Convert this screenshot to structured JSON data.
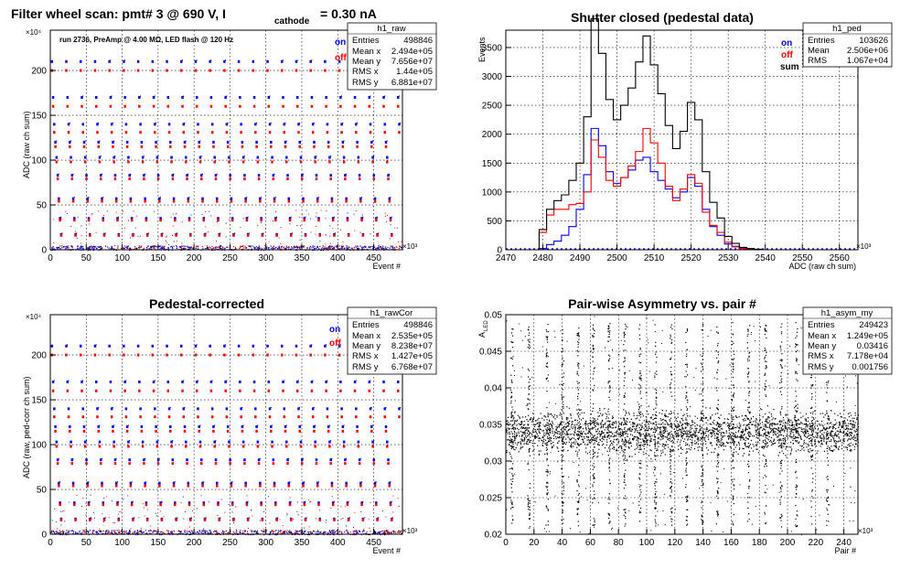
{
  "colors": {
    "on": "#0000ff",
    "off": "#ff0000",
    "sum": "#000000"
  },
  "chart_data": [
    {
      "type": "scatter",
      "title_main": "Filter wheel scan: pmt#   3 @   690 V, I",
      "title_sub": "cathode",
      "title_tail": "= 0.30 nA",
      "annotation": "run 2736, PreAmp @ 4.00 MΩ, LED flash @  120 Hz",
      "xlabel": "Event #",
      "ylabel": "ADC (raw ch sum)",
      "x_exponent": "×10³",
      "y_exponent": "×10⁴",
      "xlim": [
        0,
        490
      ],
      "ylim": [
        0,
        245
      ],
      "xticks": [
        0,
        50,
        100,
        150,
        200,
        250,
        300,
        350,
        400,
        450
      ],
      "yticks": [
        0,
        50,
        100,
        150,
        200
      ],
      "legend": [
        {
          "label": "on",
          "color": "#0000ff"
        },
        {
          "label": "off",
          "color": "#ff0000"
        }
      ],
      "stats": {
        "name": "h1_raw",
        "rows": [
          [
            "Entries",
            "498846"
          ],
          [
            "Mean x",
            "2.494e+05"
          ],
          [
            "Mean y",
            "7.656e+07"
          ],
          [
            "RMS x",
            "1.44e+05"
          ],
          [
            "RMS y",
            "6.881e+07"
          ]
        ]
      },
      "levels": [
        {
          "on": 210,
          "off": 200
        },
        {
          "on": 170,
          "off": 160
        },
        {
          "on": 140,
          "off": 131
        },
        {
          "on": 120,
          "off": 115
        },
        {
          "on": 103,
          "off": 98
        },
        {
          "on": 83,
          "off": 79
        },
        {
          "on": 57,
          "off": 54
        },
        {
          "on": 35,
          "off": 33
        },
        {
          "on": 17,
          "off": 16
        }
      ],
      "period": 20
    },
    {
      "type": "line",
      "title": "Shutter closed (pedestal data)",
      "xlabel": "ADC (raw ch sum)",
      "ylabel": "Events",
      "x_exponent": "×10³",
      "xlim": [
        2470,
        2565
      ],
      "ylim": [
        0,
        3800
      ],
      "xticks": [
        2470,
        2480,
        2490,
        2500,
        2510,
        2520,
        2530,
        2540,
        2550,
        2560
      ],
      "yticks": [
        0,
        500,
        1000,
        1500,
        2000,
        2500,
        3000,
        3500
      ],
      "legend": [
        {
          "label": "on",
          "color": "#0000ff"
        },
        {
          "label": "off",
          "color": "#ff0000"
        },
        {
          "label": "sum",
          "color": "#000000"
        }
      ],
      "stats": {
        "name": "h1_ped",
        "rows": [
          [
            "Entries",
            "103626"
          ],
          [
            "Mean",
            "2.506e+06"
          ],
          [
            "RMS",
            "1.067e+04"
          ]
        ]
      },
      "x": [
        2480,
        2482,
        2484,
        2486,
        2488,
        2490,
        2492,
        2494,
        2496,
        2498,
        2500,
        2502,
        2504,
        2506,
        2508,
        2510,
        2512,
        2514,
        2516,
        2518,
        2520,
        2522,
        2524,
        2526,
        2528,
        2530,
        2532,
        2534,
        2536,
        2538,
        2540
      ],
      "series": [
        {
          "name": "on",
          "color": "#0000ff",
          "values": [
            20,
            90,
            150,
            250,
            400,
            700,
            1300,
            2100,
            1800,
            1350,
            1150,
            1250,
            1380,
            1550,
            1600,
            1350,
            1200,
            1050,
            900,
            1000,
            1250,
            1100,
            700,
            400,
            250,
            100,
            50,
            20,
            10,
            5,
            0
          ]
        },
        {
          "name": "off",
          "color": "#ff0000",
          "values": [
            300,
            600,
            700,
            700,
            780,
            800,
            1000,
            1900,
            1600,
            1200,
            1100,
            1250,
            1450,
            1700,
            2100,
            1850,
            1500,
            1100,
            850,
            1050,
            1300,
            1150,
            650,
            420,
            300,
            130,
            60,
            20,
            10,
            5,
            0
          ]
        },
        {
          "name": "sum",
          "color": "#000000",
          "values": [
            350,
            700,
            850,
            950,
            1200,
            1500,
            2300,
            4000,
            3400,
            2600,
            2250,
            2500,
            2800,
            3250,
            3700,
            3200,
            2700,
            2150,
            1750,
            2050,
            2550,
            2250,
            1350,
            820,
            550,
            230,
            110,
            40,
            20,
            10,
            0
          ]
        }
      ]
    },
    {
      "type": "scatter",
      "title": "Pedestal-corrected",
      "xlabel": "Event #",
      "ylabel": "ADC (raw, ped-corr ch sum)",
      "x_exponent": "×10³",
      "y_exponent": "×10⁴",
      "xlim": [
        0,
        490
      ],
      "ylim": [
        0,
        245
      ],
      "xticks": [
        0,
        50,
        100,
        150,
        200,
        250,
        300,
        350,
        400,
        450
      ],
      "yticks": [
        0,
        50,
        100,
        150,
        200
      ],
      "legend": [
        {
          "label": "on",
          "color": "#0000ff"
        },
        {
          "label": "off",
          "color": "#ff0000"
        }
      ],
      "stats": {
        "name": "h1_rawCor",
        "rows": [
          [
            "Entries",
            "498846"
          ],
          [
            "Mean x",
            "2.535e+05"
          ],
          [
            "Mean y",
            "8.238e+07"
          ],
          [
            "RMS x",
            "1.427e+05"
          ],
          [
            "RMS y",
            "6.768e+07"
          ]
        ]
      },
      "levels": [
        {
          "on": 210,
          "off": 200
        },
        {
          "on": 170,
          "off": 160
        },
        {
          "on": 140,
          "off": 131
        },
        {
          "on": 120,
          "off": 115
        },
        {
          "on": 103,
          "off": 98
        },
        {
          "on": 83,
          "off": 79
        },
        {
          "on": 57,
          "off": 54
        },
        {
          "on": 35,
          "off": 33
        },
        {
          "on": 17,
          "off": 16
        }
      ],
      "period": 20
    },
    {
      "type": "scatter",
      "title": "Pair-wise Asymmetry vs. pair #",
      "xlabel": "Pair #",
      "ylabel": "A",
      "ylabel_sub": "LED",
      "x_exponent": "×10³",
      "xlim": [
        0,
        250
      ],
      "ylim": [
        0.02,
        0.05
      ],
      "xticks": [
        0,
        20,
        40,
        60,
        80,
        100,
        120,
        140,
        160,
        180,
        200,
        220,
        240
      ],
      "yticks": [
        0.02,
        0.025,
        0.03,
        0.035,
        0.04,
        0.045,
        0.05
      ],
      "band_center": 0.034,
      "band_halfwidth": 0.0018,
      "spike_x": [
        4,
        16,
        29,
        40,
        51,
        62,
        73,
        84,
        95,
        106,
        117,
        128,
        139,
        150,
        161,
        172,
        184,
        195,
        206,
        217,
        228
      ],
      "stats": {
        "name": "h1_asym_my",
        "rows": [
          [
            "Entries",
            "249423"
          ],
          [
            "Mean x",
            "1.249e+05"
          ],
          [
            "Mean y",
            "0.03416"
          ],
          [
            "RMS x",
            "7.178e+04"
          ],
          [
            "RMS y",
            "0.001756"
          ]
        ]
      }
    }
  ]
}
